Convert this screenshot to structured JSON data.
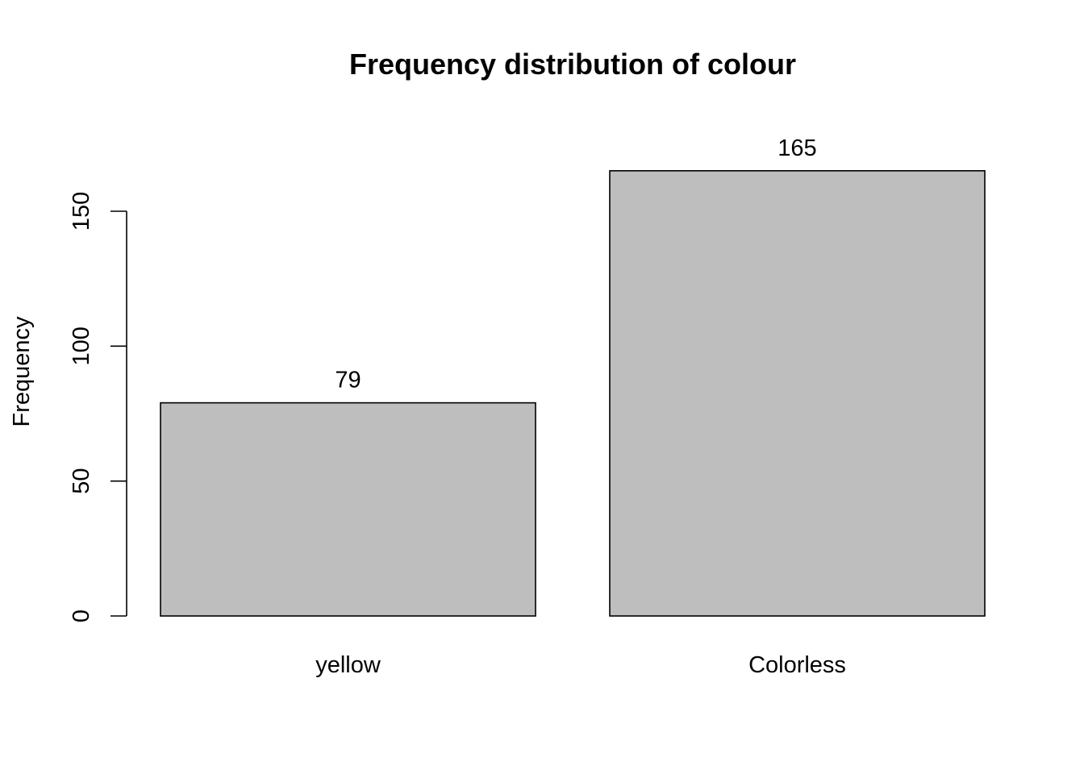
{
  "chart_data": {
    "type": "bar",
    "title": "Frequency distribution of colour",
    "xlabel": "",
    "ylabel": "Frequency",
    "categories": [
      "yellow",
      "Colorless"
    ],
    "values": [
      79,
      165
    ],
    "data_labels": [
      "79",
      "165"
    ],
    "yticks": [
      0,
      50,
      100,
      150
    ],
    "ytick_labels": [
      "0",
      "50",
      "100",
      "150"
    ],
    "ylim": [
      0,
      165
    ],
    "bar_color": "#bebebe",
    "grid": false,
    "legend": "none"
  }
}
